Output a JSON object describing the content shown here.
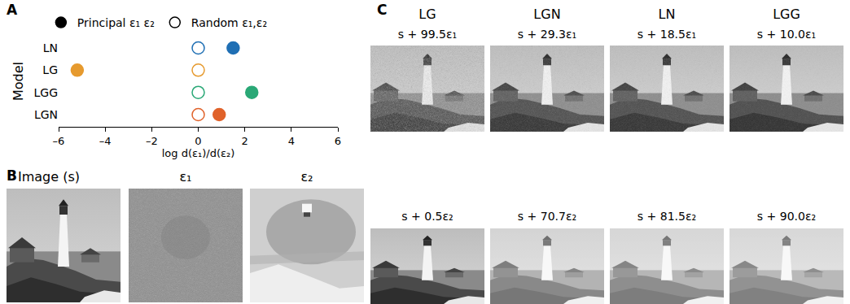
{
  "chart_data": {
    "type": "scatter",
    "categories": [
      "LN",
      "LG",
      "LGG",
      "LGN"
    ],
    "series": [
      {
        "name": "Principal ε₁ ε₂",
        "color": "#000000",
        "marker": "filled",
        "colors": [
          "#1f6fb4",
          "#e69a2e",
          "#2aa876",
          "#e0622a"
        ],
        "values": [
          1.5,
          -5.2,
          2.3,
          0.9
        ]
      },
      {
        "name": "Random ε₁,ε₂",
        "color": "#000000",
        "marker": "open",
        "colors": [
          "#1f6fb4",
          "#e69a2e",
          "#2aa876",
          "#e0622a"
        ],
        "values": [
          0,
          0,
          0,
          0
        ]
      }
    ],
    "x_label": "log d(ε₁)/d(ε₂)",
    "y_label": "Model",
    "xlim": [
      -6,
      6
    ],
    "xticks": [
      {
        "value": -6,
        "label": "–6"
      },
      {
        "value": -4,
        "label": "–4"
      },
      {
        "value": -2,
        "label": "–2"
      },
      0,
      2,
      4,
      6
    ],
    "grid": false,
    "legend": "top"
  },
  "panel_labels": [
    "A",
    "B",
    "C"
  ],
  "panel_b": {
    "titles": [
      "Image (s)",
      "ε₁",
      "ε₂"
    ]
  },
  "panel_c": {
    "columns": [
      {
        "model": "LG",
        "top": "s + 99.5ε₁",
        "bottom": "s + 0.5ε₂"
      },
      {
        "model": "LGN",
        "top": "s + 29.3ε₁",
        "bottom": "s + 70.7ε₂"
      },
      {
        "model": "LN",
        "top": "s + 18.5ε₁",
        "bottom": "s + 81.5ε₂"
      },
      {
        "model": "LGG",
        "top": "s + 10.0ε₁",
        "bottom": "s + 90.0ε₂"
      }
    ]
  }
}
